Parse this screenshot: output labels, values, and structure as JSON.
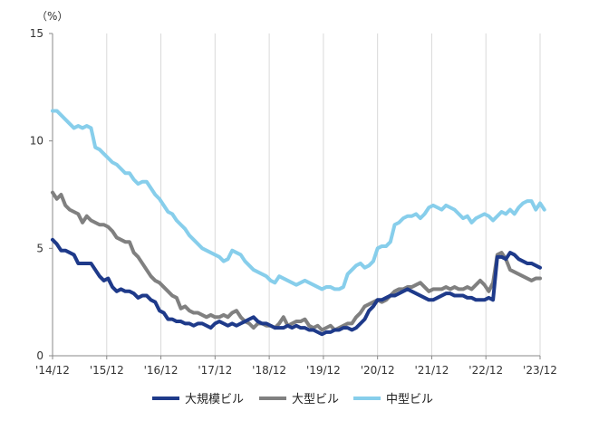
{
  "chart_data": {
    "type": "line",
    "unit_label": "（%）",
    "ylim": [
      0,
      15
    ],
    "y_ticks": [
      0,
      5,
      10,
      15
    ],
    "x_tick_labels": [
      "'14/12",
      "'15/12",
      "'16/12",
      "'17/12",
      "'18/12",
      "'19/12",
      "'20/12",
      "'21/12",
      "'22/12",
      "'23/12"
    ],
    "grid": {
      "vertical": true,
      "horizontal": false
    },
    "legend": {
      "placement": "bottom"
    },
    "series": [
      {
        "name": "大規模ビル",
        "color": "#1e3a8a",
        "values": [
          5.4,
          5.2,
          4.9,
          4.9,
          4.8,
          4.7,
          4.3,
          4.3,
          4.3,
          4.3,
          4.0,
          3.7,
          3.5,
          3.6,
          3.2,
          3.0,
          3.1,
          3.0,
          3.0,
          2.9,
          2.7,
          2.8,
          2.8,
          2.6,
          2.5,
          2.1,
          2.0,
          1.7,
          1.7,
          1.6,
          1.6,
          1.5,
          1.5,
          1.4,
          1.5,
          1.5,
          1.4,
          1.3,
          1.5,
          1.6,
          1.5,
          1.4,
          1.5,
          1.4,
          1.5,
          1.6,
          1.7,
          1.8,
          1.6,
          1.5,
          1.5,
          1.4,
          1.3,
          1.3,
          1.3,
          1.4,
          1.3,
          1.4,
          1.3,
          1.3,
          1.2,
          1.2,
          1.1,
          1.0,
          1.1,
          1.1,
          1.2,
          1.2,
          1.3,
          1.3,
          1.2,
          1.3,
          1.5,
          1.7,
          2.1,
          2.3,
          2.6,
          2.6,
          2.7,
          2.8,
          2.8,
          2.9,
          3.0,
          3.1,
          3.0,
          2.9,
          2.8,
          2.7,
          2.6,
          2.6,
          2.7,
          2.8,
          2.9,
          2.9,
          2.8,
          2.8,
          2.8,
          2.7,
          2.7,
          2.6,
          2.6,
          2.6,
          2.7,
          2.6,
          4.6,
          4.6,
          4.5,
          4.8,
          4.7,
          4.5,
          4.4,
          4.3,
          4.3,
          4.2,
          4.1
        ]
      },
      {
        "name": "大型ビル",
        "color": "#808080",
        "values": [
          7.6,
          7.3,
          7.5,
          7.0,
          6.8,
          6.7,
          6.6,
          6.2,
          6.5,
          6.3,
          6.2,
          6.1,
          6.1,
          6.0,
          5.8,
          5.5,
          5.4,
          5.3,
          5.3,
          4.8,
          4.6,
          4.3,
          4.0,
          3.7,
          3.5,
          3.4,
          3.2,
          3.0,
          2.8,
          2.7,
          2.2,
          2.3,
          2.1,
          2.0,
          2.0,
          1.9,
          1.8,
          1.9,
          1.8,
          1.8,
          1.9,
          1.8,
          2.0,
          2.1,
          1.8,
          1.6,
          1.5,
          1.3,
          1.5,
          1.5,
          1.4,
          1.4,
          1.3,
          1.5,
          1.8,
          1.4,
          1.5,
          1.6,
          1.6,
          1.7,
          1.4,
          1.3,
          1.4,
          1.2,
          1.3,
          1.4,
          1.2,
          1.3,
          1.4,
          1.5,
          1.5,
          1.8,
          2.0,
          2.3,
          2.4,
          2.5,
          2.6,
          2.5,
          2.6,
          2.8,
          3.0,
          3.1,
          3.1,
          3.2,
          3.2,
          3.3,
          3.4,
          3.2,
          3.0,
          3.1,
          3.1,
          3.1,
          3.2,
          3.1,
          3.2,
          3.1,
          3.1,
          3.2,
          3.1,
          3.3,
          3.5,
          3.3,
          3.0,
          3.4,
          4.7,
          4.8,
          4.5,
          4.0,
          3.9,
          3.8,
          3.7,
          3.6,
          3.5,
          3.6,
          3.6
        ]
      },
      {
        "name": "中型ビル",
        "color": "#87ceeb",
        "values": [
          11.4,
          11.4,
          11.2,
          11.0,
          10.8,
          10.6,
          10.7,
          10.6,
          10.7,
          10.6,
          9.7,
          9.6,
          9.4,
          9.2,
          9.0,
          8.9,
          8.7,
          8.5,
          8.5,
          8.2,
          8.0,
          8.1,
          8.1,
          7.8,
          7.5,
          7.3,
          7.0,
          6.7,
          6.6,
          6.3,
          6.1,
          5.9,
          5.6,
          5.4,
          5.2,
          5.0,
          4.9,
          4.8,
          4.7,
          4.6,
          4.4,
          4.5,
          4.9,
          4.8,
          4.7,
          4.4,
          4.2,
          4.0,
          3.9,
          3.8,
          3.7,
          3.5,
          3.4,
          3.7,
          3.6,
          3.5,
          3.4,
          3.3,
          3.4,
          3.5,
          3.4,
          3.3,
          3.2,
          3.1,
          3.2,
          3.2,
          3.1,
          3.1,
          3.2,
          3.8,
          4.0,
          4.2,
          4.3,
          4.1,
          4.2,
          4.4,
          5.0,
          5.1,
          5.1,
          5.3,
          6.1,
          6.2,
          6.4,
          6.5,
          6.5,
          6.6,
          6.4,
          6.6,
          6.9,
          7.0,
          6.9,
          6.8,
          7.0,
          6.9,
          6.8,
          6.6,
          6.4,
          6.5,
          6.2,
          6.4,
          6.5,
          6.6,
          6.5,
          6.3,
          6.5,
          6.7,
          6.6,
          6.8,
          6.6,
          6.9,
          7.1,
          7.2,
          7.2,
          6.8,
          7.1,
          6.8
        ]
      }
    ]
  }
}
